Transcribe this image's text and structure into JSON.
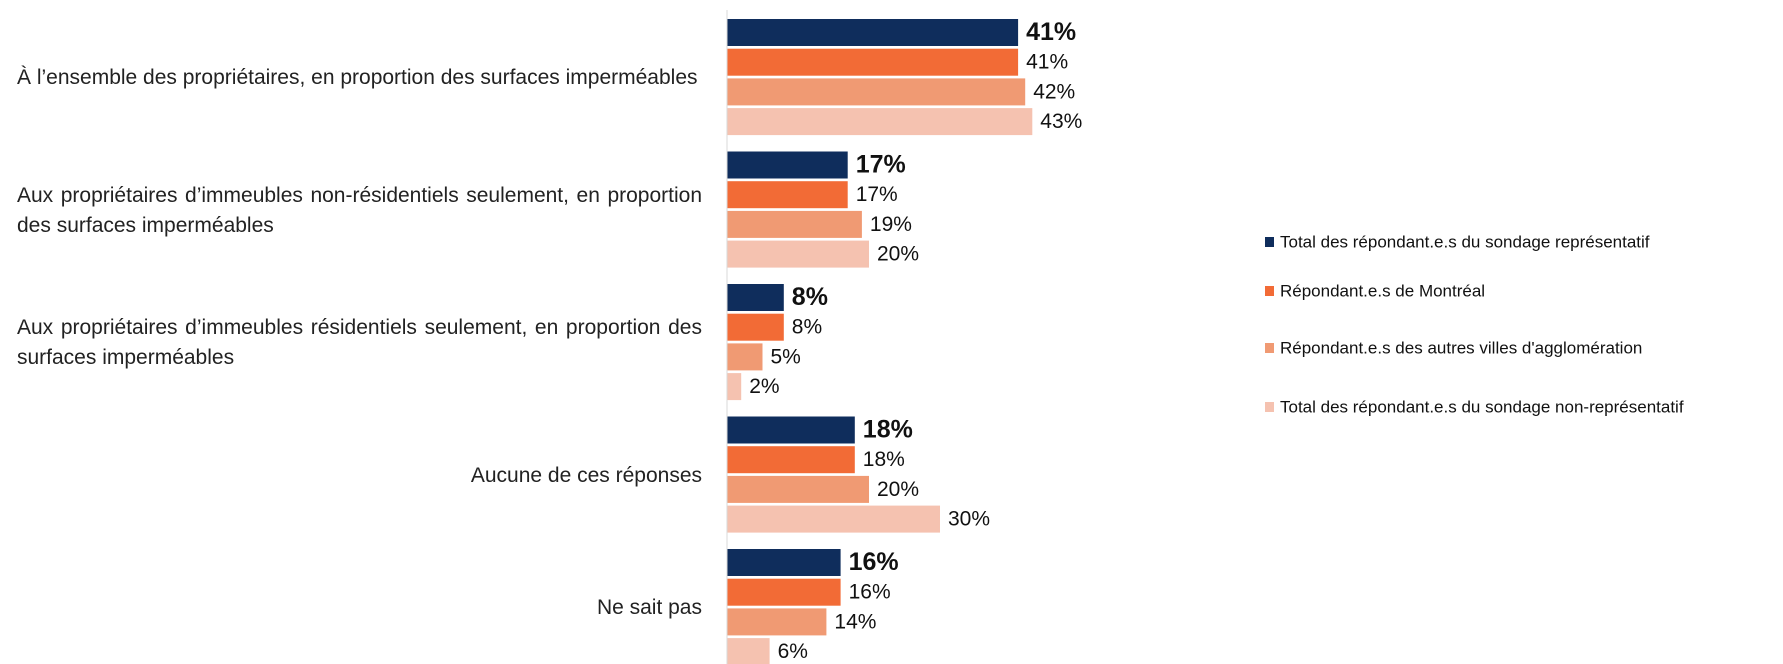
{
  "chart_data": {
    "type": "bar",
    "categories": [
      "À l’ensemble des propriétaires, en proportion des surfaces imperméables",
      "Aux propriétaires d’immeubles non-résidentiels seulement, en proportion des surfaces imperméables",
      "Aux propriétaires d’immeubles résidentiels seulement, en proportion des surfaces imperméables",
      "Aucune de ces réponses",
      "Ne sait pas"
    ],
    "series": [
      {
        "name": "Total des répondant.e.s du sondage représentatif",
        "color": "#0f2d5c",
        "values": [
          41,
          17,
          8,
          18,
          16
        ],
        "value_labels": [
          "41%",
          "17%",
          "8%",
          "18%",
          "16%"
        ]
      },
      {
        "name": "Répondant.e.s de Montréal",
        "color": "#f26b36",
        "values": [
          41,
          17,
          8,
          18,
          16
        ],
        "value_labels": [
          "41%",
          "17%",
          "8%",
          "18%",
          "16%"
        ]
      },
      {
        "name": "Répondant.e.s des autres villes d'agglomération",
        "color": "#f09a73",
        "values": [
          42,
          19,
          5,
          20,
          14
        ],
        "value_labels": [
          "42%",
          "19%",
          "5%",
          "20%",
          "14%"
        ]
      },
      {
        "name": "Total des répondant.e.s du sondage non-représentatif",
        "color": "#f5c2b0",
        "values": [
          43,
          20,
          2,
          30,
          6
        ],
        "value_labels": [
          "43%",
          "20%",
          "2%",
          "30%",
          "6%"
        ]
      }
    ]
  }
}
